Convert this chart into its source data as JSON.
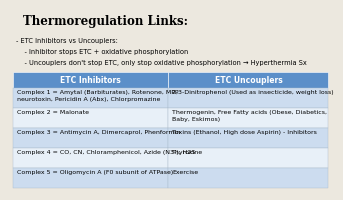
{
  "title": "Thermoregulation Links:",
  "bullet1": "- ETC Inhibitors vs Uncouplers:",
  "bullet1a": "    - Inhibitor stops ETC + oxidative phosphorylation",
  "bullet1b": "    - Uncouplers don't stop ETC, only stop oxidative phosphorylation → Hyperthermia Sx",
  "header_left": "ETC Inhibitors",
  "header_right": "ETC Uncouplers",
  "header_bg": "#5b8fc9",
  "row_alt_bg": "#ccdcef",
  "row_bg": "#e8f0f8",
  "rows": [
    {
      "left": "Complex 1 = Amytal (Barbiturates), Rotenone, MPP\nneurotoxin, Pericidin A (Abx), Chlorpromazine",
      "right": "2,3-Dinitrophenol (Used as insecticide, weight loss)"
    },
    {
      "left": "Complex 2 = Malonate",
      "right": "Thermogenin, Free Fatty acids (Obese, Diabetics,\nBaby, Eskimos)"
    },
    {
      "left": "Complex 3 = Antimycin A, Dimercaprol, Phenformin",
      "right": "Toxins (Ethanol, High dose Aspirin) - Inhibitors"
    },
    {
      "left": "Complex 4 = CO, CN, Chloramphenicol, Azide (N3-), H2S",
      "right": "Thyroxine"
    },
    {
      "left": "Complex 5 = Oligomycin A (F0 subunit of ATPase)",
      "right": "Exercise"
    }
  ],
  "bg_color": "#ece8df",
  "title_fontsize": 8.5,
  "body_fontsize": 4.8,
  "header_fontsize": 5.5,
  "table_body_fontsize": 4.5
}
